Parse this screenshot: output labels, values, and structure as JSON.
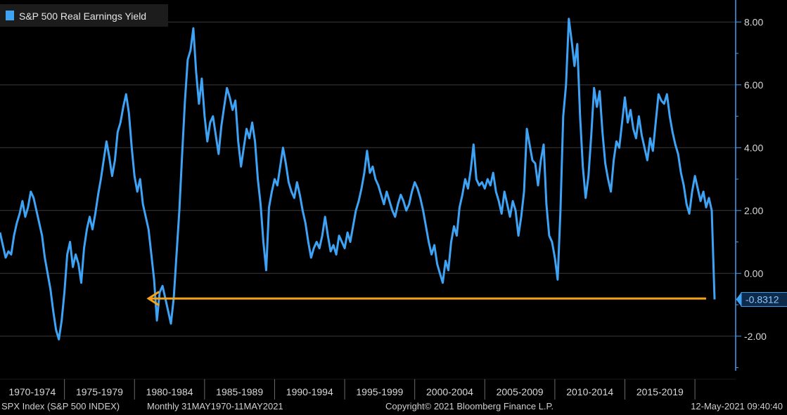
{
  "colors": {
    "background": "#000000",
    "line": "#3fa3f5",
    "grid": "#3a3a3a",
    "axis": "#4a9cf0",
    "arrow": "#f5a21b",
    "text": "#d8d8d8"
  },
  "footer": {
    "left": "SPX Index (S&P 500 INDEX)",
    "frequency": "Monthly 31MAY1970-11MAY2021",
    "center": "Copyright© 2021 Bloomberg Finance L.P.",
    "right": "12-May-2021 09:40:40"
  },
  "chart_data": {
    "type": "line",
    "legend": {
      "label": "S&P 500 Real Earnings Yield",
      "placement": "top-left"
    },
    "last_value_label": "-0.8312",
    "y_ticks": [
      "8.00",
      "6.00",
      "4.00",
      "2.00",
      "0.00",
      "-2.00"
    ],
    "y_tick_values": [
      8,
      6,
      4,
      2,
      0,
      -2
    ],
    "ylim": [
      -3.1,
      8.7
    ],
    "x_range": [
      1970.4,
      2021.4
    ],
    "x_period_labels": [
      "1970-1974",
      "1975-1979",
      "1980-1984",
      "1985-1989",
      "1990-1994",
      "1995-1999",
      "2000-2004",
      "2005-2009",
      "2010-2014",
      "2015-2019"
    ],
    "x_period_starts": [
      1970,
      1975,
      1980,
      1985,
      1990,
      1995,
      2000,
      2005,
      2010,
      2015,
      2020
    ],
    "grid": true,
    "annotation": {
      "type": "arrow",
      "color": "orange",
      "y": -0.8,
      "x_from": 2020.8,
      "x_to": 1981.0
    },
    "series": [
      {
        "values": [
          [
            1970.4,
            1.3
          ],
          [
            1970.6,
            0.9
          ],
          [
            1970.8,
            0.5
          ],
          [
            1971.0,
            0.7
          ],
          [
            1971.2,
            0.6
          ],
          [
            1971.4,
            1.2
          ],
          [
            1971.6,
            1.6
          ],
          [
            1971.8,
            1.9
          ],
          [
            1972.0,
            2.3
          ],
          [
            1972.2,
            1.8
          ],
          [
            1972.4,
            2.1
          ],
          [
            1972.6,
            2.6
          ],
          [
            1972.8,
            2.4
          ],
          [
            1973.0,
            2.0
          ],
          [
            1973.2,
            1.6
          ],
          [
            1973.4,
            1.2
          ],
          [
            1973.6,
            0.5
          ],
          [
            1973.8,
            0.0
          ],
          [
            1974.0,
            -0.5
          ],
          [
            1974.2,
            -1.2
          ],
          [
            1974.4,
            -1.8
          ],
          [
            1974.6,
            -2.1
          ],
          [
            1974.8,
            -1.5
          ],
          [
            1975.0,
            -0.6
          ],
          [
            1975.2,
            0.6
          ],
          [
            1975.4,
            1.0
          ],
          [
            1975.6,
            0.2
          ],
          [
            1975.8,
            0.6
          ],
          [
            1976.0,
            0.3
          ],
          [
            1976.2,
            -0.3
          ],
          [
            1976.4,
            0.8
          ],
          [
            1976.6,
            1.4
          ],
          [
            1976.8,
            1.8
          ],
          [
            1977.0,
            1.4
          ],
          [
            1977.2,
            1.9
          ],
          [
            1977.4,
            2.5
          ],
          [
            1977.6,
            3.0
          ],
          [
            1977.8,
            3.6
          ],
          [
            1978.0,
            4.2
          ],
          [
            1978.2,
            3.7
          ],
          [
            1978.4,
            3.1
          ],
          [
            1978.6,
            3.6
          ],
          [
            1978.8,
            4.5
          ],
          [
            1979.0,
            4.8
          ],
          [
            1979.2,
            5.3
          ],
          [
            1979.4,
            5.7
          ],
          [
            1979.6,
            5.1
          ],
          [
            1979.8,
            4.0
          ],
          [
            1980.0,
            3.1
          ],
          [
            1980.2,
            2.6
          ],
          [
            1980.4,
            3.0
          ],
          [
            1980.6,
            2.2
          ],
          [
            1980.8,
            1.8
          ],
          [
            1981.0,
            1.4
          ],
          [
            1981.2,
            0.6
          ],
          [
            1981.4,
            -0.2
          ],
          [
            1981.6,
            -1.5
          ],
          [
            1981.8,
            -0.6
          ],
          [
            1982.0,
            -0.4
          ],
          [
            1982.2,
            -0.8
          ],
          [
            1982.4,
            -1.2
          ],
          [
            1982.6,
            -1.6
          ],
          [
            1982.8,
            -0.8
          ],
          [
            1983.0,
            0.6
          ],
          [
            1983.2,
            2.0
          ],
          [
            1983.4,
            3.8
          ],
          [
            1983.6,
            5.5
          ],
          [
            1983.8,
            6.8
          ],
          [
            1984.0,
            7.1
          ],
          [
            1984.2,
            7.8
          ],
          [
            1984.4,
            6.4
          ],
          [
            1984.6,
            5.4
          ],
          [
            1984.8,
            6.2
          ],
          [
            1985.0,
            5.0
          ],
          [
            1985.2,
            4.2
          ],
          [
            1985.4,
            4.8
          ],
          [
            1985.6,
            5.0
          ],
          [
            1985.8,
            4.4
          ],
          [
            1986.0,
            3.8
          ],
          [
            1986.2,
            4.7
          ],
          [
            1986.4,
            5.3
          ],
          [
            1986.6,
            5.9
          ],
          [
            1986.8,
            5.6
          ],
          [
            1987.0,
            5.2
          ],
          [
            1987.2,
            5.5
          ],
          [
            1987.4,
            4.2
          ],
          [
            1987.6,
            3.4
          ],
          [
            1987.8,
            4.0
          ],
          [
            1988.0,
            4.6
          ],
          [
            1988.2,
            4.3
          ],
          [
            1988.4,
            4.8
          ],
          [
            1988.6,
            4.2
          ],
          [
            1988.8,
            3.0
          ],
          [
            1989.0,
            2.2
          ],
          [
            1989.2,
            1.0
          ],
          [
            1989.4,
            0.1
          ],
          [
            1989.6,
            2.1
          ],
          [
            1989.8,
            2.6
          ],
          [
            1990.0,
            3.0
          ],
          [
            1990.2,
            2.8
          ],
          [
            1990.4,
            3.4
          ],
          [
            1990.6,
            4.0
          ],
          [
            1990.8,
            3.5
          ],
          [
            1991.0,
            2.9
          ],
          [
            1991.2,
            2.6
          ],
          [
            1991.4,
            2.4
          ],
          [
            1991.6,
            2.9
          ],
          [
            1991.8,
            2.5
          ],
          [
            1992.0,
            2.0
          ],
          [
            1992.2,
            1.6
          ],
          [
            1992.4,
            1.0
          ],
          [
            1992.6,
            0.5
          ],
          [
            1992.8,
            0.8
          ],
          [
            1993.0,
            1.0
          ],
          [
            1993.2,
            0.8
          ],
          [
            1993.4,
            1.2
          ],
          [
            1993.6,
            1.8
          ],
          [
            1993.8,
            1.2
          ],
          [
            1994.0,
            0.7
          ],
          [
            1994.2,
            0.9
          ],
          [
            1994.4,
            0.6
          ],
          [
            1994.6,
            1.2
          ],
          [
            1994.8,
            1.0
          ],
          [
            1995.0,
            0.8
          ],
          [
            1995.2,
            1.3
          ],
          [
            1995.4,
            1.0
          ],
          [
            1995.6,
            1.5
          ],
          [
            1995.8,
            2.0
          ],
          [
            1996.0,
            2.3
          ],
          [
            1996.2,
            2.7
          ],
          [
            1996.4,
            3.2
          ],
          [
            1996.6,
            3.9
          ],
          [
            1996.8,
            3.2
          ],
          [
            1997.0,
            3.4
          ],
          [
            1997.2,
            3.0
          ],
          [
            1997.4,
            2.8
          ],
          [
            1997.6,
            2.5
          ],
          [
            1997.8,
            2.2
          ],
          [
            1998.0,
            2.6
          ],
          [
            1998.2,
            2.3
          ],
          [
            1998.4,
            2.0
          ],
          [
            1998.6,
            1.8
          ],
          [
            1998.8,
            2.2
          ],
          [
            1999.0,
            2.5
          ],
          [
            1999.2,
            2.3
          ],
          [
            1999.4,
            2.0
          ],
          [
            1999.6,
            2.2
          ],
          [
            1999.8,
            2.6
          ],
          [
            2000.0,
            2.9
          ],
          [
            2000.2,
            2.7
          ],
          [
            2000.4,
            2.4
          ],
          [
            2000.6,
            2.0
          ],
          [
            2000.8,
            1.5
          ],
          [
            2001.0,
            1.0
          ],
          [
            2001.2,
            0.6
          ],
          [
            2001.4,
            0.9
          ],
          [
            2001.6,
            0.3
          ],
          [
            2001.8,
            0.0
          ],
          [
            2002.0,
            -0.3
          ],
          [
            2002.2,
            0.4
          ],
          [
            2002.4,
            0.1
          ],
          [
            2002.6,
            1.0
          ],
          [
            2002.8,
            1.5
          ],
          [
            2003.0,
            1.2
          ],
          [
            2003.2,
            2.1
          ],
          [
            2003.4,
            2.5
          ],
          [
            2003.6,
            3.0
          ],
          [
            2003.8,
            2.7
          ],
          [
            2004.0,
            3.3
          ],
          [
            2004.2,
            4.1
          ],
          [
            2004.4,
            3.0
          ],
          [
            2004.6,
            2.8
          ],
          [
            2004.8,
            2.9
          ],
          [
            2005.0,
            2.7
          ],
          [
            2005.2,
            3.0
          ],
          [
            2005.4,
            2.8
          ],
          [
            2005.6,
            3.2
          ],
          [
            2005.8,
            2.6
          ],
          [
            2006.0,
            2.3
          ],
          [
            2006.2,
            1.9
          ],
          [
            2006.4,
            2.6
          ],
          [
            2006.6,
            2.2
          ],
          [
            2006.8,
            1.8
          ],
          [
            2007.0,
            2.3
          ],
          [
            2007.2,
            2.0
          ],
          [
            2007.4,
            1.2
          ],
          [
            2007.6,
            1.8
          ],
          [
            2007.8,
            2.6
          ],
          [
            2008.0,
            4.6
          ],
          [
            2008.2,
            4.1
          ],
          [
            2008.4,
            3.6
          ],
          [
            2008.6,
            3.5
          ],
          [
            2008.8,
            2.8
          ],
          [
            2009.0,
            3.6
          ],
          [
            2009.2,
            4.1
          ],
          [
            2009.4,
            2.2
          ],
          [
            2009.6,
            1.2
          ],
          [
            2009.8,
            1.0
          ],
          [
            2010.0,
            0.5
          ],
          [
            2010.2,
            -0.2
          ],
          [
            2010.4,
            2.0
          ],
          [
            2010.6,
            5.0
          ],
          [
            2010.8,
            6.0
          ],
          [
            2011.0,
            8.1
          ],
          [
            2011.2,
            7.4
          ],
          [
            2011.4,
            6.6
          ],
          [
            2011.6,
            7.3
          ],
          [
            2011.8,
            5.0
          ],
          [
            2012.0,
            3.4
          ],
          [
            2012.2,
            2.4
          ],
          [
            2012.4,
            3.1
          ],
          [
            2012.6,
            4.4
          ],
          [
            2012.8,
            5.9
          ],
          [
            2013.0,
            5.3
          ],
          [
            2013.2,
            5.8
          ],
          [
            2013.4,
            4.5
          ],
          [
            2013.6,
            3.5
          ],
          [
            2013.8,
            3.0
          ],
          [
            2014.0,
            2.6
          ],
          [
            2014.2,
            3.6
          ],
          [
            2014.4,
            4.2
          ],
          [
            2014.6,
            4.0
          ],
          [
            2014.8,
            4.8
          ],
          [
            2015.0,
            5.6
          ],
          [
            2015.2,
            4.8
          ],
          [
            2015.4,
            5.2
          ],
          [
            2015.6,
            4.6
          ],
          [
            2015.8,
            4.3
          ],
          [
            2016.0,
            5.0
          ],
          [
            2016.2,
            4.4
          ],
          [
            2016.4,
            4.0
          ],
          [
            2016.6,
            3.6
          ],
          [
            2016.8,
            4.3
          ],
          [
            2017.0,
            3.9
          ],
          [
            2017.2,
            4.8
          ],
          [
            2017.4,
            5.7
          ],
          [
            2017.6,
            5.5
          ],
          [
            2017.8,
            5.4
          ],
          [
            2018.0,
            5.7
          ],
          [
            2018.2,
            5.0
          ],
          [
            2018.4,
            4.5
          ],
          [
            2018.6,
            4.1
          ],
          [
            2018.8,
            3.8
          ],
          [
            2019.0,
            3.2
          ],
          [
            2019.2,
            2.8
          ],
          [
            2019.4,
            2.2
          ],
          [
            2019.6,
            1.9
          ],
          [
            2019.8,
            2.6
          ],
          [
            2020.0,
            3.1
          ],
          [
            2020.2,
            2.7
          ],
          [
            2020.4,
            2.3
          ],
          [
            2020.6,
            2.6
          ],
          [
            2020.8,
            2.1
          ],
          [
            2021.0,
            2.4
          ],
          [
            2021.2,
            2.0
          ],
          [
            2021.4,
            -0.83
          ]
        ]
      }
    ]
  }
}
